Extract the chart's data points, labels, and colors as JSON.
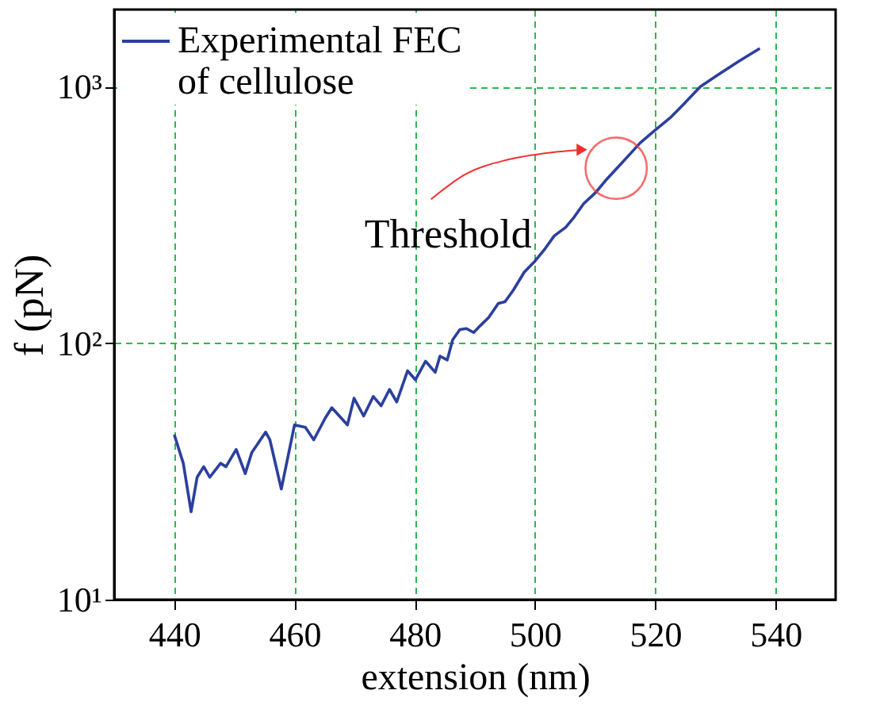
{
  "chart_data": {
    "type": "line",
    "xlabel": "extension (nm)",
    "ylabel": "f (pN)",
    "x": [
      440,
      441.5,
      442.8,
      443.8,
      444.9,
      445.9,
      447.7,
      448.6,
      450.3,
      451.8,
      452.9,
      455.2,
      455.9,
      457.8,
      460,
      461.8,
      463.2,
      465.1,
      466.2,
      468.8,
      469.9,
      471.5,
      473.1,
      474.4,
      475.8,
      477,
      478.8,
      480.1,
      481.8,
      483.4,
      484.2,
      485.4,
      486.3,
      487.5,
      488.6,
      489.8,
      490.9,
      492.3,
      493.9,
      495,
      496.4,
      498.2,
      500,
      501.7,
      503.2,
      505.1,
      506.5,
      508.1,
      510.1,
      511.9,
      513.8,
      515.6,
      517.5,
      519.7,
      522.5,
      524.8,
      527.5,
      530.3,
      533.9,
      537.4
    ],
    "series": [
      {
        "name": "Experimental FEC of cellulose",
        "color": "#2b3f9e",
        "values": [
          44,
          34,
          22,
          30,
          33,
          30,
          34,
          33,
          38.5,
          31,
          37.5,
          45,
          42,
          27,
          48,
          47,
          42,
          51,
          56,
          48,
          61,
          52,
          62,
          57,
          66,
          59,
          78,
          72,
          85,
          77,
          89,
          86,
          103,
          113,
          114,
          110,
          117,
          126,
          143,
          145,
          161,
          189,
          209,
          234,
          262,
          283,
          310,
          350,
          387,
          435,
          486,
          540,
          604,
          668,
          757,
          859,
          1000,
          1107,
          1256,
          1410
        ]
      }
    ],
    "xlim": [
      430,
      550
    ],
    "xticks": [
      440,
      460,
      480,
      500,
      520,
      540
    ],
    "ylim": [
      10,
      2000
    ],
    "yticks": [
      {
        "value": 10,
        "label": "10¹"
      },
      {
        "value": 100,
        "label": "10²"
      },
      {
        "value": 1000,
        "label": "10³"
      }
    ],
    "log": "y",
    "grid": true,
    "legend": "top left",
    "marker": "none",
    "line_style": "solid",
    "annotations": [
      {
        "text": "Threshold",
        "x": 513.5,
        "y": 481
      }
    ]
  }
}
